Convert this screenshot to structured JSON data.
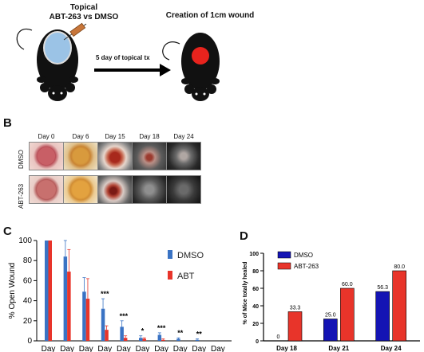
{
  "panel_a": {
    "treatment_label_line1": "Topical",
    "treatment_label_line2": "ABT-263 vs DMSO",
    "arrow_label": "5 day of topical tx",
    "wound_label": "Creation of 1cm wound",
    "colors": {
      "wound": "#e8231d",
      "mouse": "#111111",
      "patch": "#9bc3e6"
    }
  },
  "panel_b": {
    "letter": "B",
    "days": [
      "Day 0",
      "Day 6",
      "Day 15",
      "Day 18",
      "Day 24"
    ],
    "rows": [
      "DMSO",
      "ABT-263"
    ]
  },
  "chart_data": [
    {
      "panel": "C",
      "type": "bar",
      "ylabel": "% Open Wound",
      "ylim": [
        0,
        100
      ],
      "yticks": [
        0,
        20,
        40,
        60,
        80,
        100
      ],
      "category_label": "Day",
      "categories": [
        "Day",
        "Day",
        "Day",
        "Day",
        "Day",
        "Day",
        "Day",
        "Day",
        "Day",
        "Day"
      ],
      "series": [
        {
          "name": "DMSO",
          "color": "#3a73c4",
          "values": [
            100,
            84,
            49,
            32,
            14,
            3,
            6,
            2,
            1,
            0
          ],
          "errors": [
            0,
            16,
            14,
            10,
            6,
            2,
            2,
            1,
            1,
            0
          ]
        },
        {
          "name": "ABT",
          "color": "#e8342a",
          "values": [
            100,
            69,
            42,
            11,
            3,
            2,
            1,
            0,
            0,
            0
          ],
          "errors": [
            0,
            22,
            20,
            4,
            2,
            1,
            1,
            0,
            0,
            0
          ]
        }
      ],
      "significance": [
        "",
        "",
        "",
        "***",
        "***",
        "*",
        "***",
        "**",
        "**",
        ""
      ],
      "legend_position": "right",
      "grid": false
    },
    {
      "panel": "D",
      "type": "bar",
      "ylabel": "% of Mice totally healed",
      "ylim": [
        0,
        100
      ],
      "yticks": [
        0,
        20,
        40,
        60,
        80,
        100
      ],
      "categories": [
        "Day 18",
        "Day 21",
        "Day 24"
      ],
      "series": [
        {
          "name": "DMSO",
          "color": "#1414b4",
          "values": [
            0,
            25.0,
            56.3
          ],
          "value_labels": [
            "0",
            "25.0",
            "56.3"
          ]
        },
        {
          "name": "ABT-263",
          "color": "#e8342a",
          "values": [
            33.3,
            60.0,
            80.0
          ],
          "value_labels": [
            "33.3",
            "60.0",
            "80.0"
          ]
        }
      ],
      "legend_position": "top-left",
      "grid": false
    }
  ]
}
